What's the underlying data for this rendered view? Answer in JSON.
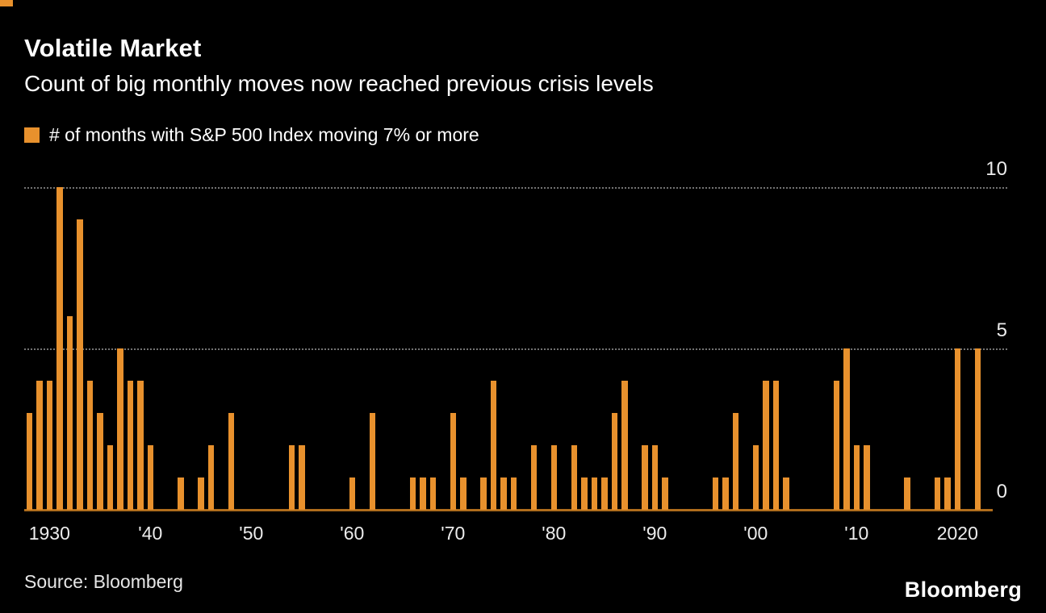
{
  "header": {
    "title": "Volatile Market",
    "subtitle": "Count of big monthly moves now reached previous crisis levels"
  },
  "legend": {
    "label": "# of months with S&P 500 Index moving 7% or more",
    "swatch_color": "#E8912D"
  },
  "footer": {
    "source": "Source:  Bloomberg",
    "brand": "Bloomberg"
  },
  "chart_data": {
    "type": "bar",
    "title": "Volatile Market",
    "subtitle": "Count of big monthly moves now reached previous crisis levels",
    "series_name": "# of months with S&P 500 Index moving 7% or more",
    "bar_color": "#E8912D",
    "grid": true,
    "legend_position": "top-left",
    "ylim": [
      0,
      10
    ],
    "yticks": [
      0,
      5,
      10
    ],
    "x_range": [
      1928,
      2023
    ],
    "xticks": [
      {
        "year": 1930,
        "label": "1930"
      },
      {
        "year": 1940,
        "label": "'40"
      },
      {
        "year": 1950,
        "label": "'50"
      },
      {
        "year": 1960,
        "label": "'60"
      },
      {
        "year": 1970,
        "label": "'70"
      },
      {
        "year": 1980,
        "label": "'80"
      },
      {
        "year": 1990,
        "label": "'90"
      },
      {
        "year": 2000,
        "label": "'00"
      },
      {
        "year": 2010,
        "label": "'10"
      },
      {
        "year": 2020,
        "label": "2020"
      }
    ],
    "series": [
      {
        "year": 1928,
        "value": 3
      },
      {
        "year": 1929,
        "value": 4
      },
      {
        "year": 1930,
        "value": 4
      },
      {
        "year": 1931,
        "value": 10
      },
      {
        "year": 1932,
        "value": 6
      },
      {
        "year": 1933,
        "value": 9
      },
      {
        "year": 1934,
        "value": 4
      },
      {
        "year": 1935,
        "value": 3
      },
      {
        "year": 1936,
        "value": 2
      },
      {
        "year": 1937,
        "value": 5
      },
      {
        "year": 1938,
        "value": 4
      },
      {
        "year": 1939,
        "value": 4
      },
      {
        "year": 1940,
        "value": 2
      },
      {
        "year": 1943,
        "value": 1
      },
      {
        "year": 1945,
        "value": 1
      },
      {
        "year": 1946,
        "value": 2
      },
      {
        "year": 1948,
        "value": 3
      },
      {
        "year": 1954,
        "value": 2
      },
      {
        "year": 1955,
        "value": 2
      },
      {
        "year": 1960,
        "value": 1
      },
      {
        "year": 1962,
        "value": 3
      },
      {
        "year": 1966,
        "value": 1
      },
      {
        "year": 1967,
        "value": 1
      },
      {
        "year": 1968,
        "value": 1
      },
      {
        "year": 1970,
        "value": 3
      },
      {
        "year": 1971,
        "value": 1
      },
      {
        "year": 1973,
        "value": 1
      },
      {
        "year": 1974,
        "value": 4
      },
      {
        "year": 1975,
        "value": 1
      },
      {
        "year": 1976,
        "value": 1
      },
      {
        "year": 1978,
        "value": 2
      },
      {
        "year": 1980,
        "value": 2
      },
      {
        "year": 1982,
        "value": 2
      },
      {
        "year": 1983,
        "value": 1
      },
      {
        "year": 1984,
        "value": 1
      },
      {
        "year": 1985,
        "value": 1
      },
      {
        "year": 1986,
        "value": 3
      },
      {
        "year": 1987,
        "value": 4
      },
      {
        "year": 1989,
        "value": 2
      },
      {
        "year": 1990,
        "value": 2
      },
      {
        "year": 1991,
        "value": 1
      },
      {
        "year": 1996,
        "value": 1
      },
      {
        "year": 1997,
        "value": 1
      },
      {
        "year": 1998,
        "value": 3
      },
      {
        "year": 2000,
        "value": 2
      },
      {
        "year": 2001,
        "value": 4
      },
      {
        "year": 2002,
        "value": 4
      },
      {
        "year": 2003,
        "value": 1
      },
      {
        "year": 2008,
        "value": 4
      },
      {
        "year": 2009,
        "value": 5
      },
      {
        "year": 2010,
        "value": 2
      },
      {
        "year": 2011,
        "value": 2
      },
      {
        "year": 2015,
        "value": 1
      },
      {
        "year": 2018,
        "value": 1
      },
      {
        "year": 2019,
        "value": 1
      },
      {
        "year": 2020,
        "value": 5
      },
      {
        "year": 2022,
        "value": 5
      }
    ]
  }
}
